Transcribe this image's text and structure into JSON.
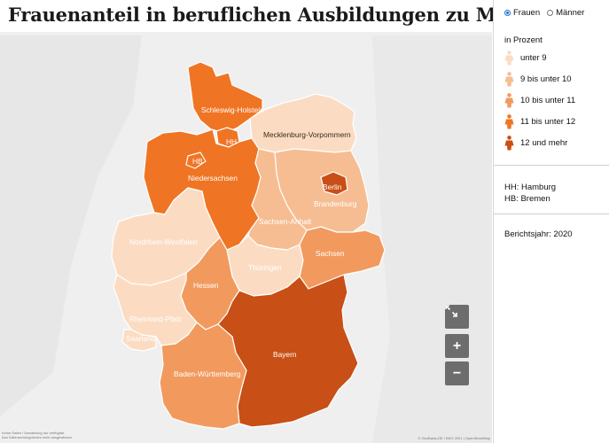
{
  "title": "Frauenanteil in beruflichen Ausbildungen zu MINT-Berufen",
  "colors": {
    "class1": "#fbdcc2",
    "class2": "#f6bd92",
    "class3": "#f29a5e",
    "class4": "#ef7524",
    "class5": "#c84f15",
    "map_background": "#efefef",
    "radio_accent": "#1f6fd6",
    "map_button": "#6d6d6d"
  },
  "toggle": {
    "options": [
      {
        "label": "Frauen",
        "selected": true
      },
      {
        "label": "Männer",
        "selected": false
      }
    ]
  },
  "legend": {
    "title": "in Prozent",
    "icon": "person-icon",
    "items": [
      {
        "label": "unter 9",
        "color": "#fbdcc2"
      },
      {
        "label": "9 bis unter 10",
        "color": "#f6bd92"
      },
      {
        "label": "10 bis unter 11",
        "color": "#f29a5e"
      },
      {
        "label": "11 bis unter 12",
        "color": "#ef7524"
      },
      {
        "label": "12 und mehr",
        "color": "#c84f15"
      }
    ]
  },
  "notes": {
    "hh": "HH: Hamburg",
    "hb": "HB: Bremen",
    "year": "Berichtsjahr: 2020"
  },
  "map": {
    "regions": [
      {
        "name": "Schleswig-Holstein",
        "class": 4
      },
      {
        "name": "HH",
        "class": 4
      },
      {
        "name": "Mecklenburg-Vorpommern",
        "class": 1
      },
      {
        "name": "HB",
        "class": 4
      },
      {
        "name": "Niedersachsen",
        "class": 4
      },
      {
        "name": "Berlin",
        "class": 5
      },
      {
        "name": "Brandenburg",
        "class": 2
      },
      {
        "name": "Sachsen-Anhalt",
        "class": 2
      },
      {
        "name": "Nordrhein-Westfalen",
        "class": 1
      },
      {
        "name": "Thüringen",
        "class": 1
      },
      {
        "name": "Sachsen",
        "class": 3
      },
      {
        "name": "Hessen",
        "class": 3
      },
      {
        "name": "Rheinland-Pfalz",
        "class": 1
      },
      {
        "name": "Saarland",
        "class": 1
      },
      {
        "name": "Bayern",
        "class": 5
      },
      {
        "name": "Baden-Württemberg",
        "class": 3
      }
    ],
    "controls": {
      "fullscreen": "expand-icon",
      "zoom_in": "+",
      "zoom_out": "−"
    }
  }
}
